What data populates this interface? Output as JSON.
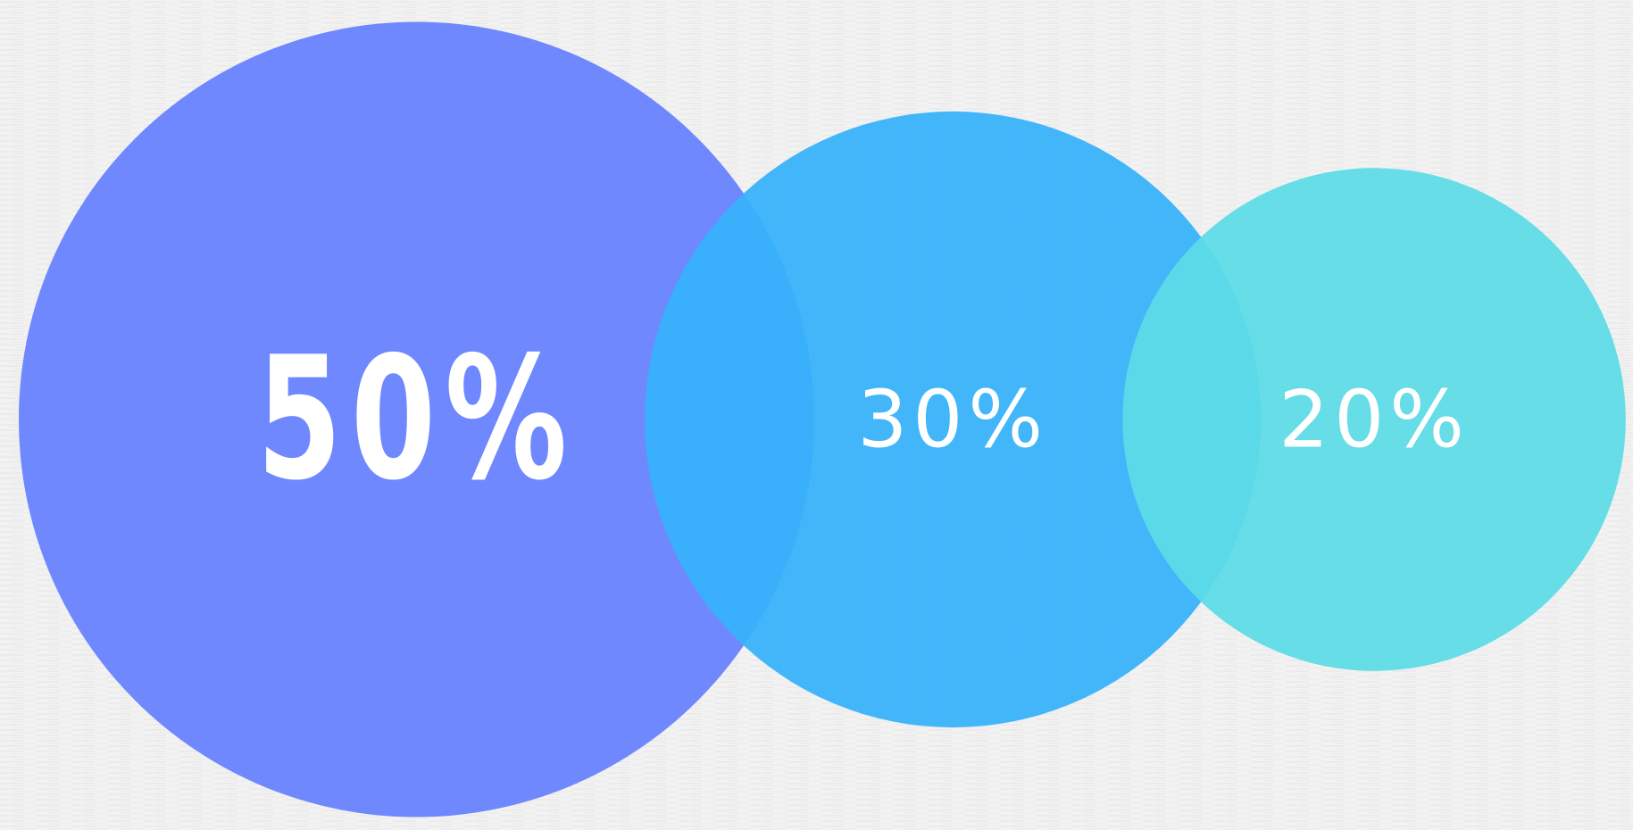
{
  "chart_data": {
    "type": "bubble",
    "values": [
      50,
      30,
      20
    ],
    "value_labels": [
      "50%",
      "30%",
      "20%"
    ],
    "colors": [
      "#6680ff",
      "#36b2fb",
      "#5cdce6"
    ]
  }
}
